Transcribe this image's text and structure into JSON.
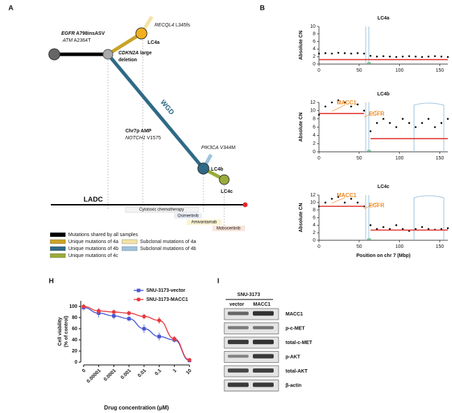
{
  "panel_labels": [
    "A",
    "B",
    "H",
    "I"
  ],
  "tree": {
    "mutations": [
      {
        "gene": "EGFR",
        "change": "A798insASV"
      },
      {
        "gene": "ATM",
        "change": "A2364T"
      },
      {
        "gene": "RECQL4",
        "change": "L345fs"
      },
      {
        "gene": "CDKN2A",
        "change": [
          "large",
          "deletion"
        ]
      },
      {
        "gene": "Chr7p AMP"
      },
      {
        "gene": "NOTCH1",
        "change": "V1575"
      },
      {
        "gene": "PIK3CA",
        "change": "V344M"
      }
    ],
    "nodes": [
      "LC4a",
      "LC4b",
      "LC4c"
    ],
    "branch_label": "WGD",
    "trunk_label": "LADC",
    "treatments": [
      "Cytotoxic chemotherapy",
      "Osimertinib",
      "Amivantamab",
      "Mobocertinib"
    ],
    "legend": [
      {
        "label": "Mutations shared by all samples",
        "color": "#000000"
      },
      {
        "label": "Unique mutations of 4a",
        "color": "#c9a227"
      },
      {
        "label": "Unique mutations of 4b",
        "color": "#2f6a86"
      },
      {
        "label": "Unique mutations of 4c",
        "color": "#9aab3a"
      },
      {
        "label": "Subclonal mutations of 4a",
        "color": "#f3e3a6"
      },
      {
        "label": "Subclonal mutations of 4b",
        "color": "#9ec3dd"
      }
    ]
  },
  "chart_data": [
    {
      "type": "scatter",
      "title": "LC4a",
      "ylabel": "Absolute CN",
      "x": [
        0,
        8,
        16,
        24,
        32,
        40,
        48,
        56,
        64,
        72,
        80,
        88,
        96,
        104,
        112,
        120,
        128,
        136,
        144,
        152,
        160
      ],
      "values": [
        2.8,
        2.9,
        2.8,
        3.0,
        2.9,
        2.8,
        2.9,
        2.8,
        2.2,
        2.0,
        2.1,
        2.0,
        1.9,
        2.0,
        2.1,
        2.0,
        1.9,
        2.0,
        2.1,
        2.0,
        1.9
      ],
      "color": "#000000",
      "segments": [
        {
          "start": 0,
          "end": 160,
          "value": 1.2
        }
      ],
      "segment_color": "#e0322d",
      "xlim": [
        0,
        160
      ],
      "xticks": [
        0,
        50,
        100,
        150
      ],
      "ylim": [
        0,
        10
      ],
      "yticks": [
        0,
        2,
        4,
        6,
        8,
        10
      ]
    },
    {
      "type": "scatter",
      "title": "LC4b",
      "ylabel": "Absolute CN",
      "x": [
        0,
        8,
        16,
        24,
        32,
        40,
        48,
        56,
        64,
        72,
        80,
        88,
        96,
        104,
        112,
        120,
        128,
        136,
        144,
        152,
        160
      ],
      "values": [
        9,
        11,
        12,
        12.5,
        12,
        11,
        11.5,
        10,
        5,
        7,
        8,
        7,
        6,
        8,
        7,
        6,
        7,
        8,
        6,
        7,
        8
      ],
      "color": "#000000",
      "segments": [
        {
          "start": 0,
          "end": 56,
          "value": 9.3
        },
        {
          "start": 64,
          "end": 160,
          "value": 3.2
        }
      ],
      "segment_color": "#e0322d",
      "annotations": [
        "MACC1",
        "EGFR"
      ],
      "xlim": [
        0,
        160
      ],
      "xticks": [
        0,
        50,
        100,
        150
      ],
      "ylim": [
        0,
        12
      ],
      "yticks": [
        0,
        2,
        4,
        6,
        8,
        10,
        12
      ]
    },
    {
      "type": "scatter",
      "title": "LC4c",
      "ylabel": "Absolute CN",
      "xlabel": "Position on chr 7 (Mbp)",
      "x": [
        0,
        8,
        16,
        24,
        32,
        40,
        48,
        56,
        64,
        72,
        80,
        88,
        96,
        104,
        112,
        120,
        128,
        136,
        144,
        152,
        160
      ],
      "values": [
        9,
        10,
        11,
        11.5,
        10,
        11,
        10,
        9,
        4,
        3,
        3.5,
        3,
        4,
        3,
        2.5,
        3,
        3.5,
        3,
        2.8,
        3,
        3.2
      ],
      "color": "#000000",
      "segments": [
        {
          "start": 0,
          "end": 56,
          "value": 9
        },
        {
          "start": 64,
          "end": 160,
          "value": 2.7
        }
      ],
      "segment_color": "#e0322d",
      "annotations": [
        "MACC1",
        "EGFR"
      ],
      "xlim": [
        0,
        160
      ],
      "xticks": [
        0,
        50,
        100,
        150
      ],
      "ylim": [
        0,
        12
      ],
      "yticks": [
        0,
        2,
        4,
        6,
        8,
        10,
        12
      ]
    },
    {
      "type": "line",
      "ylabel": [
        "Cell viability",
        "(% of control)"
      ],
      "xlabel": "Drug concentration (μM)",
      "categories": [
        "0",
        "0.00001",
        "0.0001",
        "0.001",
        "0.01",
        "0.1",
        "1",
        "10"
      ],
      "series": [
        {
          "name": "SNU-3173-vector",
          "color": "#4a55d4",
          "marker": "square",
          "values": [
            98,
            88,
            83,
            78,
            60,
            46,
            40,
            3
          ],
          "errors": [
            5,
            8,
            6,
            5,
            8,
            7,
            5,
            2
          ]
        },
        {
          "name": "SNU-3173-MACC1",
          "color": "#e8393f",
          "marker": "circle",
          "values": [
            100,
            92,
            90,
            88,
            82,
            75,
            42,
            4
          ],
          "errors": [
            4,
            5,
            4,
            4,
            5,
            6,
            5,
            2
          ]
        }
      ],
      "ylim": [
        0,
        110
      ],
      "yticks": [
        0,
        20,
        40,
        60,
        80,
        100
      ]
    }
  ],
  "blot": {
    "cell_line": "SNU-3173",
    "lanes": [
      "vector",
      "MACC1"
    ],
    "proteins": [
      "MACC1",
      "p-c-MET",
      "total-c-MET",
      "p-AKT",
      "total-AKT",
      "β-actin"
    ]
  }
}
